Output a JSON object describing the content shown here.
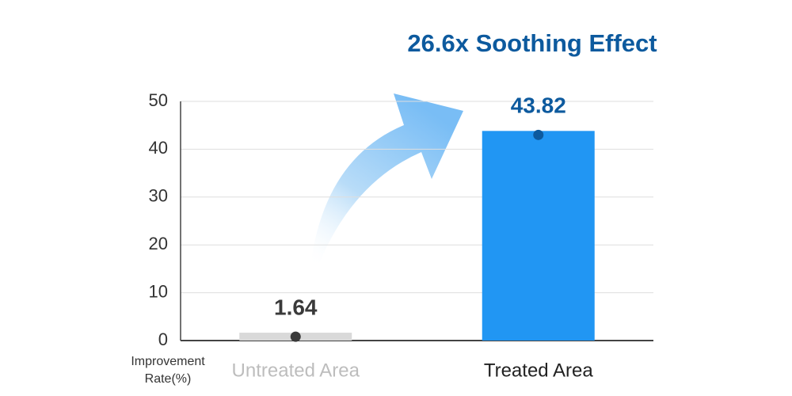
{
  "chart_data": {
    "type": "bar",
    "title": "26.6x Soothing Effect",
    "y_label": "Improvement Rate(%)",
    "categories": [
      "Untreated Area",
      "Treated Area"
    ],
    "values": [
      1.64,
      43.82
    ],
    "colors": [
      "#d9d9d9",
      "#2196f3"
    ],
    "value_label_colors": [
      "#3a3a3a",
      "#0d5a9e"
    ],
    "category_label_colors": [
      "#bdbdbd",
      "#222222"
    ],
    "title_color": "#0d5a9e",
    "ylim": [
      0,
      50
    ],
    "yticks": [
      0,
      10,
      20,
      30,
      40,
      50
    ],
    "grid": true
  }
}
